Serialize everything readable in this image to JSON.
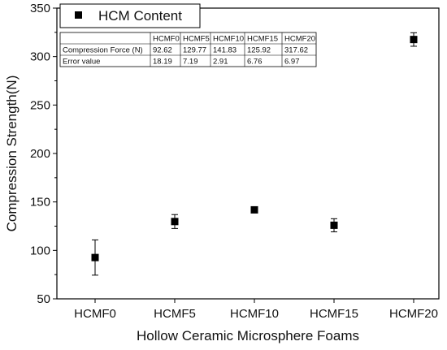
{
  "chart_data": {
    "type": "scatter",
    "categories": [
      "HCMF0",
      "HCMF5",
      "HCMF10",
      "HCMF15",
      "HCMF20"
    ],
    "series": [
      {
        "name": "HCM Content",
        "values": [
          92.62,
          129.77,
          141.83,
          125.92,
          317.62
        ],
        "errors": [
          18.19,
          7.19,
          2.91,
          6.76,
          6.97
        ],
        "marker": "square",
        "color": "#000000"
      }
    ],
    "xlabel": "Hollow Ceramic Microsphere Foams",
    "ylabel": "Compression Strength(N)",
    "ylim": [
      50,
      350
    ],
    "yticks": [
      50,
      100,
      150,
      200,
      250,
      300,
      350
    ],
    "grid": false,
    "legend_position": "top-left",
    "table": {
      "header": [
        "",
        "HCMF0",
        "HCMF5",
        "HCMF10",
        "HCMF15",
        "HCMF20"
      ],
      "rows": [
        [
          "Compression Force (N)",
          "92.62",
          "129.77",
          "141.83",
          "125.92",
          "317.62"
        ],
        [
          "Error value",
          "18.19",
          "7.19",
          "2.91",
          "6.76",
          "6.97"
        ]
      ]
    }
  }
}
